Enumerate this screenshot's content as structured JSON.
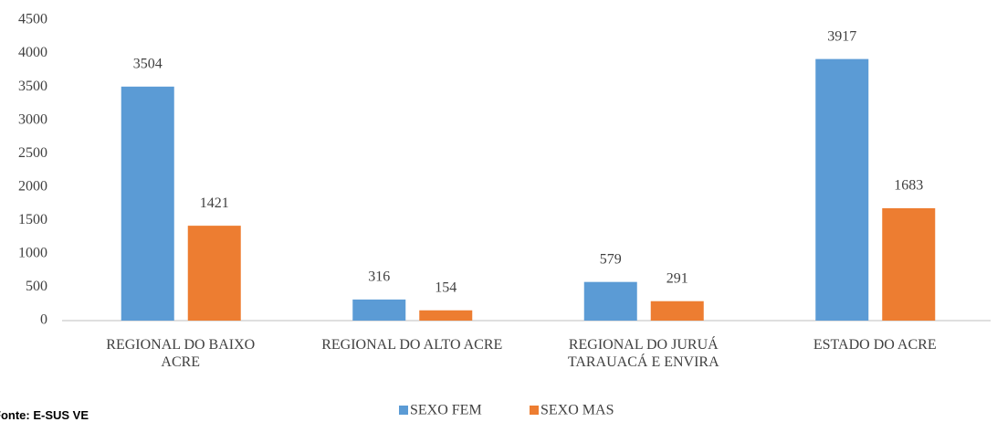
{
  "chart_data": {
    "type": "bar",
    "categories": [
      "REGIONAL DO BAIXO ACRE",
      "REGIONAL DO ALTO ACRE",
      "REGIONAL DO JURUÁ TARAUACÁ E ENVIRA",
      "ESTADO DO ACRE"
    ],
    "series": [
      {
        "name": "SEXO FEM",
        "color": "#5b9bd5",
        "values": [
          3504,
          316,
          579,
          3917
        ]
      },
      {
        "name": "SEXO MAS",
        "color": "#ed7d31",
        "values": [
          1421,
          154,
          291,
          1683
        ]
      }
    ],
    "ylim": [
      0,
      4500
    ],
    "yticks": [
      0,
      500,
      1000,
      1500,
      2000,
      2500,
      3000,
      3500,
      4000,
      4500
    ],
    "grid": false,
    "legend": "bottom",
    "source": "Fonte: E-SUS VE"
  }
}
